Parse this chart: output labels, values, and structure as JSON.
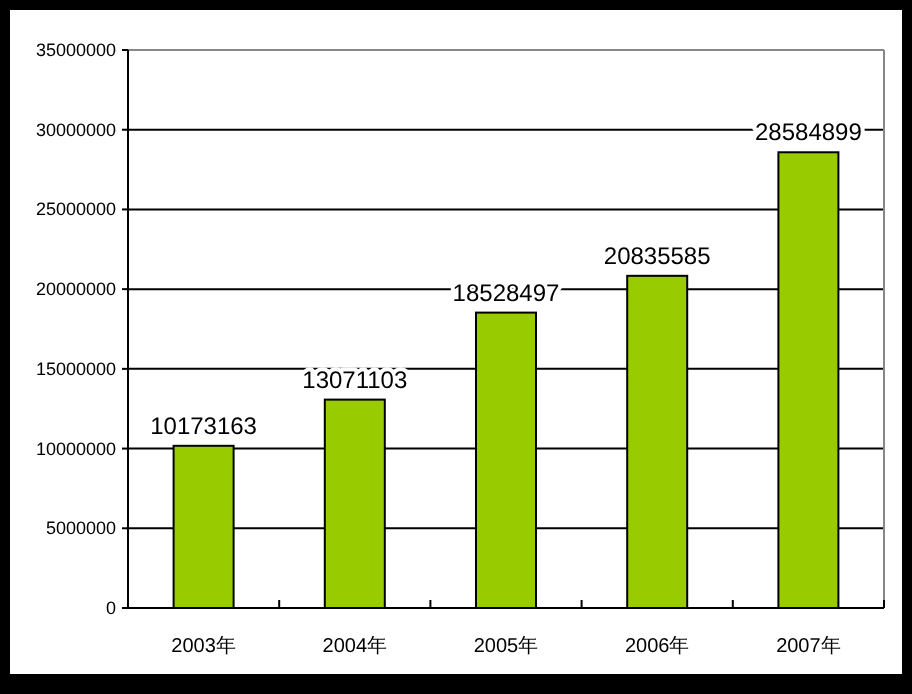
{
  "chart_data": {
    "type": "bar",
    "categories": [
      "2003年",
      "2004年",
      "2005年",
      "2006年",
      "2007年"
    ],
    "values": [
      10173163,
      13071103,
      18528497,
      20835585,
      28584899
    ],
    "color": "#99cc00",
    "ylim": [
      0,
      35000000
    ],
    "yticks": [
      0,
      5000000,
      10000000,
      15000000,
      20000000,
      25000000,
      30000000,
      35000000
    ],
    "grid": "y",
    "data_labels": true
  }
}
